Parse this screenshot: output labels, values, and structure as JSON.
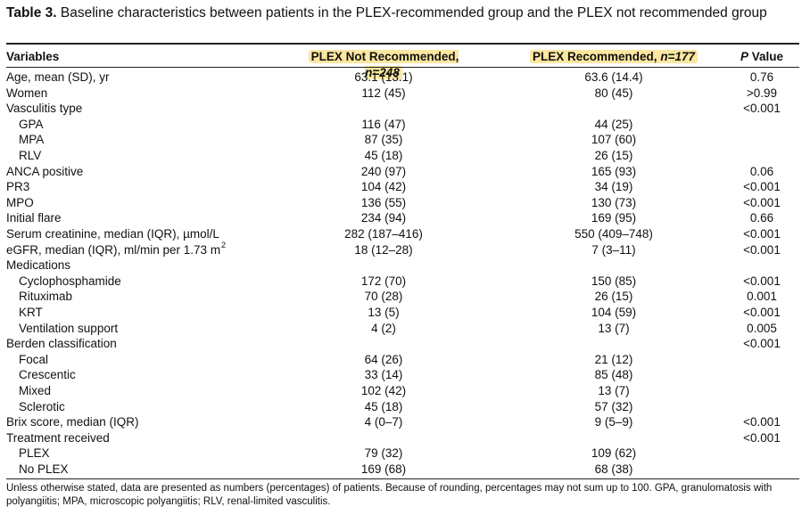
{
  "caption": {
    "label": "Table 3.",
    "text": "Baseline characteristics between patients in the PLEX-recommended group and the PLEX not recommended group"
  },
  "header": {
    "variables": "Variables",
    "col1": "PLEX Not Recommended, ",
    "col1_n": "n=248",
    "col2": "PLEX Recommended, ",
    "col2_n": "n=177",
    "col3_p": "P",
    "col3_rest": " Value"
  },
  "rows": [
    {
      "label": "Age, mean (SD), yr",
      "indent": false,
      "c1": "63.1 (13.1)",
      "c2": "63.6 (14.4)",
      "p": "0.76"
    },
    {
      "label": "Women",
      "indent": false,
      "c1": "112 (45)",
      "c2": "80 (45)",
      "p": ">0.99"
    },
    {
      "label": "Vasculitis type",
      "indent": false,
      "c1": "",
      "c2": "",
      "p": "<0.001"
    },
    {
      "label": "GPA",
      "indent": true,
      "c1": "116 (47)",
      "c2": "44 (25)",
      "p": ""
    },
    {
      "label": "MPA",
      "indent": true,
      "c1": "87 (35)",
      "c2": "107 (60)",
      "p": ""
    },
    {
      "label": "RLV",
      "indent": true,
      "c1": "45 (18)",
      "c2": "26 (15)",
      "p": ""
    },
    {
      "label": "ANCA positive",
      "indent": false,
      "c1": "240 (97)",
      "c2": "165 (93)",
      "p": "0.06"
    },
    {
      "label": "PR3",
      "indent": false,
      "c1": "104 (42)",
      "c2": "34 (19)",
      "p": "<0.001"
    },
    {
      "label": "MPO",
      "indent": false,
      "c1": "136 (55)",
      "c2": "130 (73)",
      "p": "<0.001"
    },
    {
      "label": "Initial flare",
      "indent": false,
      "c1": "234 (94)",
      "c2": "169 (95)",
      "p": "0.66"
    },
    {
      "label": "Serum creatinine, median (IQR), µmol/L",
      "indent": false,
      "c1": "282 (187–416)",
      "c2": "550 (409–748)",
      "p": "<0.001"
    },
    {
      "label": "eGFR, median (IQR), ml/min per 1.73 m",
      "sup": "2",
      "indent": false,
      "c1": "18 (12–28)",
      "c2": "7 (3–11)",
      "p": "<0.001"
    },
    {
      "label": "Medications",
      "indent": false,
      "c1": "",
      "c2": "",
      "p": ""
    },
    {
      "label": "Cyclophosphamide",
      "indent": true,
      "c1": "172 (70)",
      "c2": "150 (85)",
      "p": "<0.001"
    },
    {
      "label": "Rituximab",
      "indent": true,
      "c1": "70 (28)",
      "c2": "26 (15)",
      "p": "0.001"
    },
    {
      "label": "KRT",
      "indent": true,
      "c1": "13 (5)",
      "c2": "104 (59)",
      "p": "<0.001"
    },
    {
      "label": "Ventilation support",
      "indent": true,
      "c1": "4 (2)",
      "c2": "13 (7)",
      "p": "0.005"
    },
    {
      "label": "Berden classification",
      "indent": false,
      "c1": "",
      "c2": "",
      "p": "<0.001"
    },
    {
      "label": "Focal",
      "indent": true,
      "c1": "64 (26)",
      "c2": "21 (12)",
      "p": ""
    },
    {
      "label": "Crescentic",
      "indent": true,
      "c1": "33 (14)",
      "c2": "85 (48)",
      "p": ""
    },
    {
      "label": "Mixed",
      "indent": true,
      "c1": "102 (42)",
      "c2": "13 (7)",
      "p": ""
    },
    {
      "label": "Sclerotic",
      "indent": true,
      "c1": "45 (18)",
      "c2": "57 (32)",
      "p": ""
    },
    {
      "label": "Brix score, median (IQR)",
      "indent": false,
      "c1": "4 (0–7)",
      "c2": "9 (5–9)",
      "p": "<0.001"
    },
    {
      "label": "Treatment received",
      "indent": false,
      "c1": "",
      "c2": "",
      "p": "<0.001"
    },
    {
      "label": "PLEX",
      "indent": true,
      "c1": "79 (32)",
      "c2": "109 (62)",
      "p": ""
    },
    {
      "label": "No PLEX",
      "indent": true,
      "c1": "169 (68)",
      "c2": "68 (38)",
      "p": ""
    }
  ],
  "footnote": "Unless otherwise stated, data are presented as numbers (percentages) of patients. Because of rounding, percentages may not sum up to 100. GPA, granulomatosis with polyangiitis; MPA, microscopic polyangiitis; RLV, renal-limited vasculitis."
}
